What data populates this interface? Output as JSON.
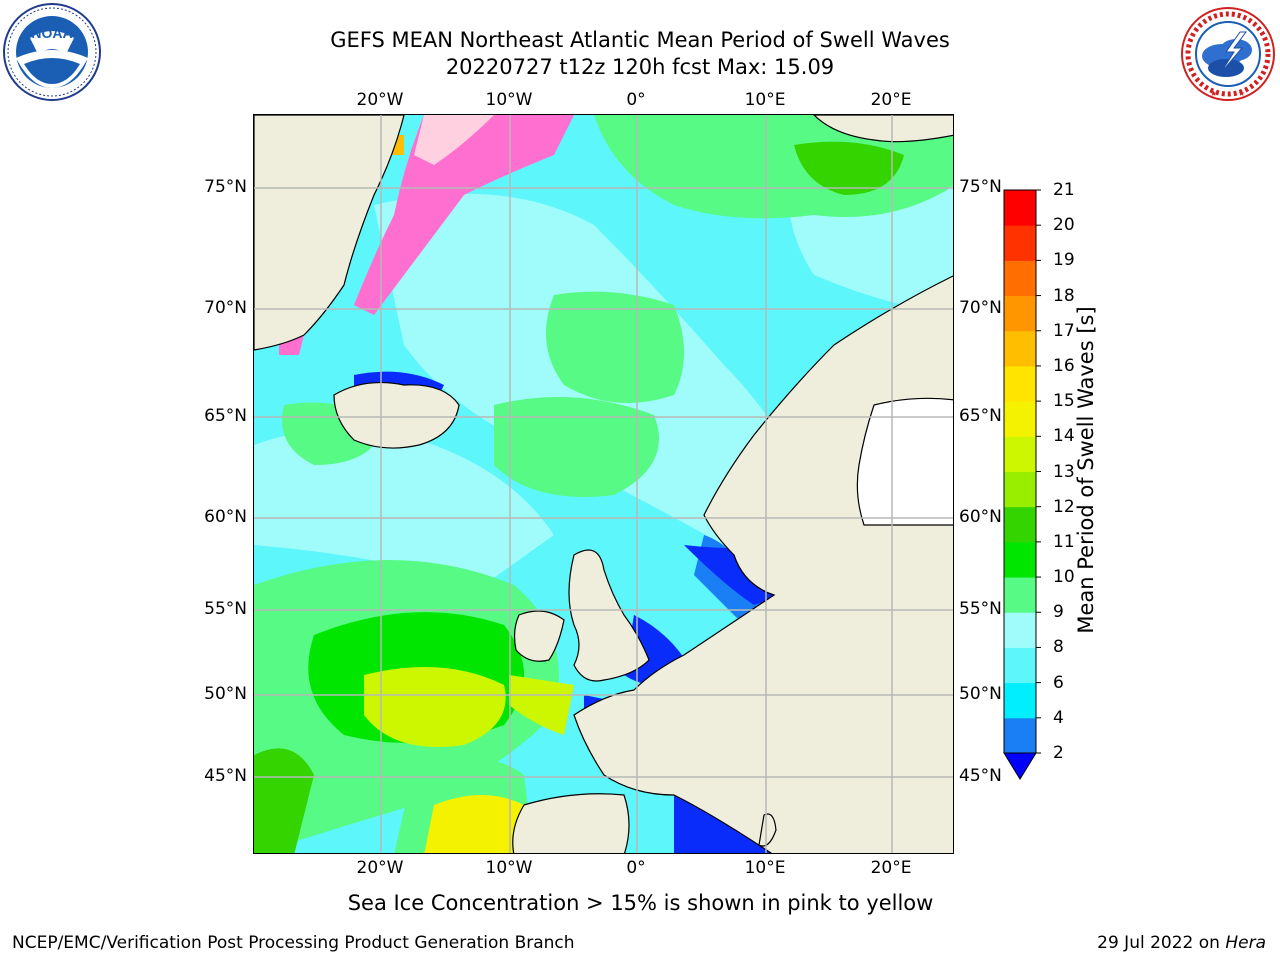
{
  "header": {
    "title_line1": "GEFS MEAN Northeast Atlantic Mean Period of Swell Waves",
    "title_line2": "20220727 t12z 120h fcst   Max: 15.09"
  },
  "logos": {
    "left": {
      "icon": "noaa-logo",
      "text": "NOAA",
      "ring_text": "NATIONAL OCEANIC AND ATMOSPHERIC ADMINISTRATION · U.S. DEPARTMENT OF COMMERCE"
    },
    "right": {
      "icon": "nws-logo",
      "ring_text": "NATIONAL WEATHER SERVICE"
    }
  },
  "map": {
    "longitude_labels": [
      "20°W",
      "10°W",
      "0°",
      "10°E",
      "20°E"
    ],
    "latitude_labels": [
      "75°N",
      "70°N",
      "65°N",
      "60°N",
      "55°N",
      "50°N",
      "45°N"
    ],
    "colors": {
      "land": "#efeedd",
      "grid": "#b8b8b8",
      "ocean_base": "#5cf6fb"
    }
  },
  "colorbar": {
    "label": "Mean Period of Swell Waves [s]",
    "tick_labels": [
      "2",
      "4",
      "6",
      "8",
      "9",
      "10",
      "11",
      "12",
      "13",
      "14",
      "15",
      "16",
      "17",
      "18",
      "19",
      "20",
      "21"
    ],
    "colors": [
      "#0a2cfa",
      "#1a7ef4",
      "#00eefe",
      "#5cf6fb",
      "#9ffcfb",
      "#58fa86",
      "#00e600",
      "#33d400",
      "#99ee00",
      "#ccf700",
      "#f5f200",
      "#ffe400",
      "#ffbe00",
      "#ff9600",
      "#ff6e00",
      "#ff3200",
      "#ff0000"
    ],
    "extend_color": "#0000ff"
  },
  "subtitle": "Sea Ice Concentration > 15% is shown in pink to yellow",
  "footer": {
    "left": "NCEP/EMC/Verification Post Processing Product Generation Branch",
    "date": "29 Jul 2022 on",
    "host": "Hera"
  }
}
